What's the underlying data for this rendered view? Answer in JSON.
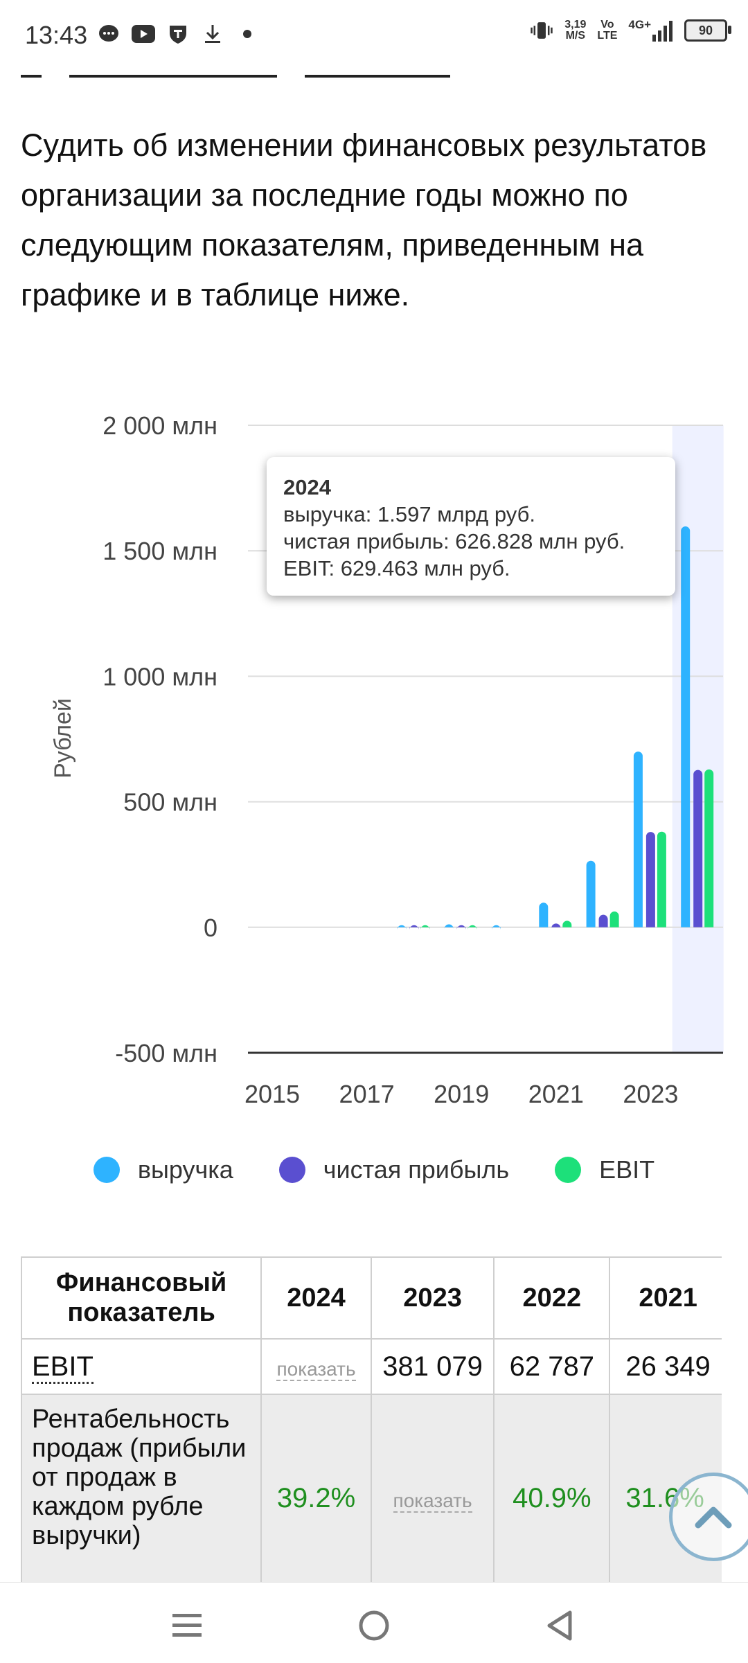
{
  "status_bar": {
    "time": "13:43",
    "speed_value": "3,19",
    "speed_unit": "M/S",
    "volte_top": "Vo",
    "volte_bottom": "LTE",
    "network": "4G+",
    "battery": "90",
    "icons": [
      "chat-bubble-icon",
      "youtube-icon",
      "shield-t-icon",
      "download-icon",
      "dot-icon",
      "vibrate-icon",
      "signal-icon"
    ]
  },
  "intro_text": "Судить об изменении финансовых результатов организации за последние годы можно по следующим показателям, приведенным на графике и в таблице ниже.",
  "chart_data": {
    "type": "bar",
    "ylabel": "Рублей",
    "ylim": [
      -500,
      2000
    ],
    "y_unit": "млн руб.",
    "y_ticks": [
      {
        "value": 2000,
        "label": "2 000 млн"
      },
      {
        "value": 1500,
        "label": "1 500 млн"
      },
      {
        "value": 1000,
        "label": "1 000 млн"
      },
      {
        "value": 500,
        "label": "500 млн"
      },
      {
        "value": 0,
        "label": "0"
      },
      {
        "value": -500,
        "label": "-500 млн"
      }
    ],
    "x_ticks": [
      "2015",
      "2017",
      "2019",
      "2021",
      "2023"
    ],
    "categories": [
      "2015",
      "2016",
      "2017",
      "2018",
      "2019",
      "2020",
      "2021",
      "2022",
      "2023",
      "2024"
    ],
    "series": [
      {
        "name": "выручка",
        "color": "#2eb3ff",
        "values": [
          0,
          0,
          0,
          2,
          12,
          5,
          98,
          265,
          700,
          1597
        ]
      },
      {
        "name": "чистая прибыль",
        "color": "#5a4fd0",
        "values": [
          0,
          0,
          0,
          3,
          8,
          0,
          15,
          50,
          380,
          627
        ]
      },
      {
        "name": "EBIT",
        "color": "#1de07a",
        "values": [
          0,
          0,
          0,
          1,
          6,
          0,
          26,
          63,
          381,
          629
        ]
      }
    ],
    "highlight_category": "2024",
    "tooltip": {
      "year": "2024",
      "lines": [
        "выручка: 1.597 млрд руб.",
        "чистая прибыль: 626.828 млн руб.",
        "EBIT: 629.463 млн руб."
      ]
    },
    "legend": [
      {
        "label": "выручка",
        "color": "#2eb3ff"
      },
      {
        "label": "чистая прибыль",
        "color": "#5a4fd0"
      },
      {
        "label": "EBIT",
        "color": "#1de07a"
      }
    ]
  },
  "table": {
    "header": [
      "Финансовый показатель",
      "2024",
      "2023",
      "2022",
      "2021"
    ],
    "rows": [
      {
        "indicator": "EBIT",
        "values": [
          "показать",
          "381 079",
          "62 787",
          "26 349"
        ]
      },
      {
        "indicator": "Рентабельность продаж (прибыли от продаж в каждом рубле выручки)",
        "values": [
          "39.2%",
          "показать",
          "40.9%",
          "31.6%"
        ]
      }
    ]
  }
}
